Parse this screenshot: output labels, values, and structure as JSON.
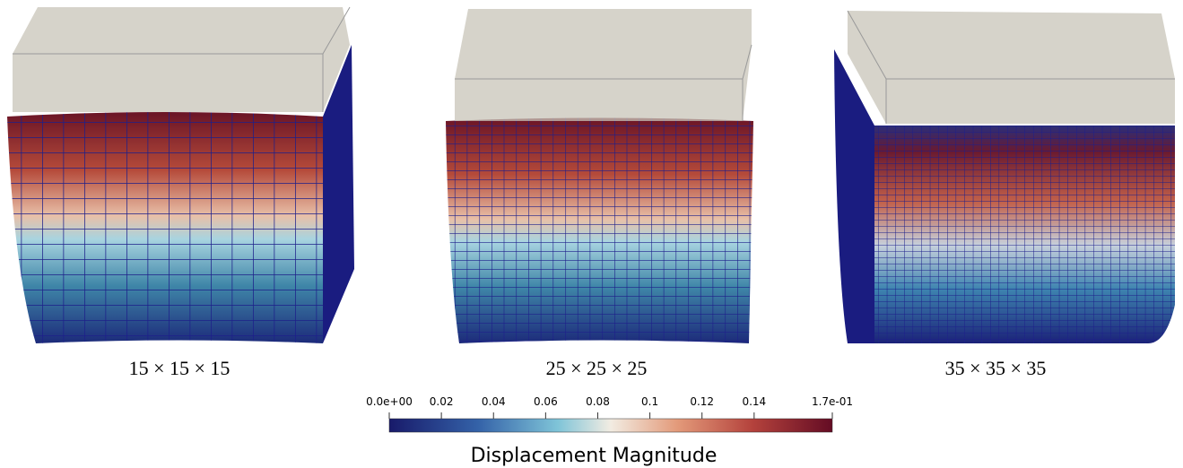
{
  "panels": [
    {
      "caption": "15 × 15 × 15"
    },
    {
      "caption": "25 × 25 × 25"
    },
    {
      "caption": "35 × 35 × 35"
    }
  ],
  "colorbar": {
    "title": "Displacement Magnitude",
    "range": [
      0,
      0.17
    ],
    "ticks": [
      {
        "value": 0,
        "label": "0.0e+00"
      },
      0.02,
      0.04,
      0.06,
      0.08,
      0.1,
      0.12,
      0.14,
      {
        "value": 0.17,
        "label": "1.7e-01"
      }
    ]
  }
}
